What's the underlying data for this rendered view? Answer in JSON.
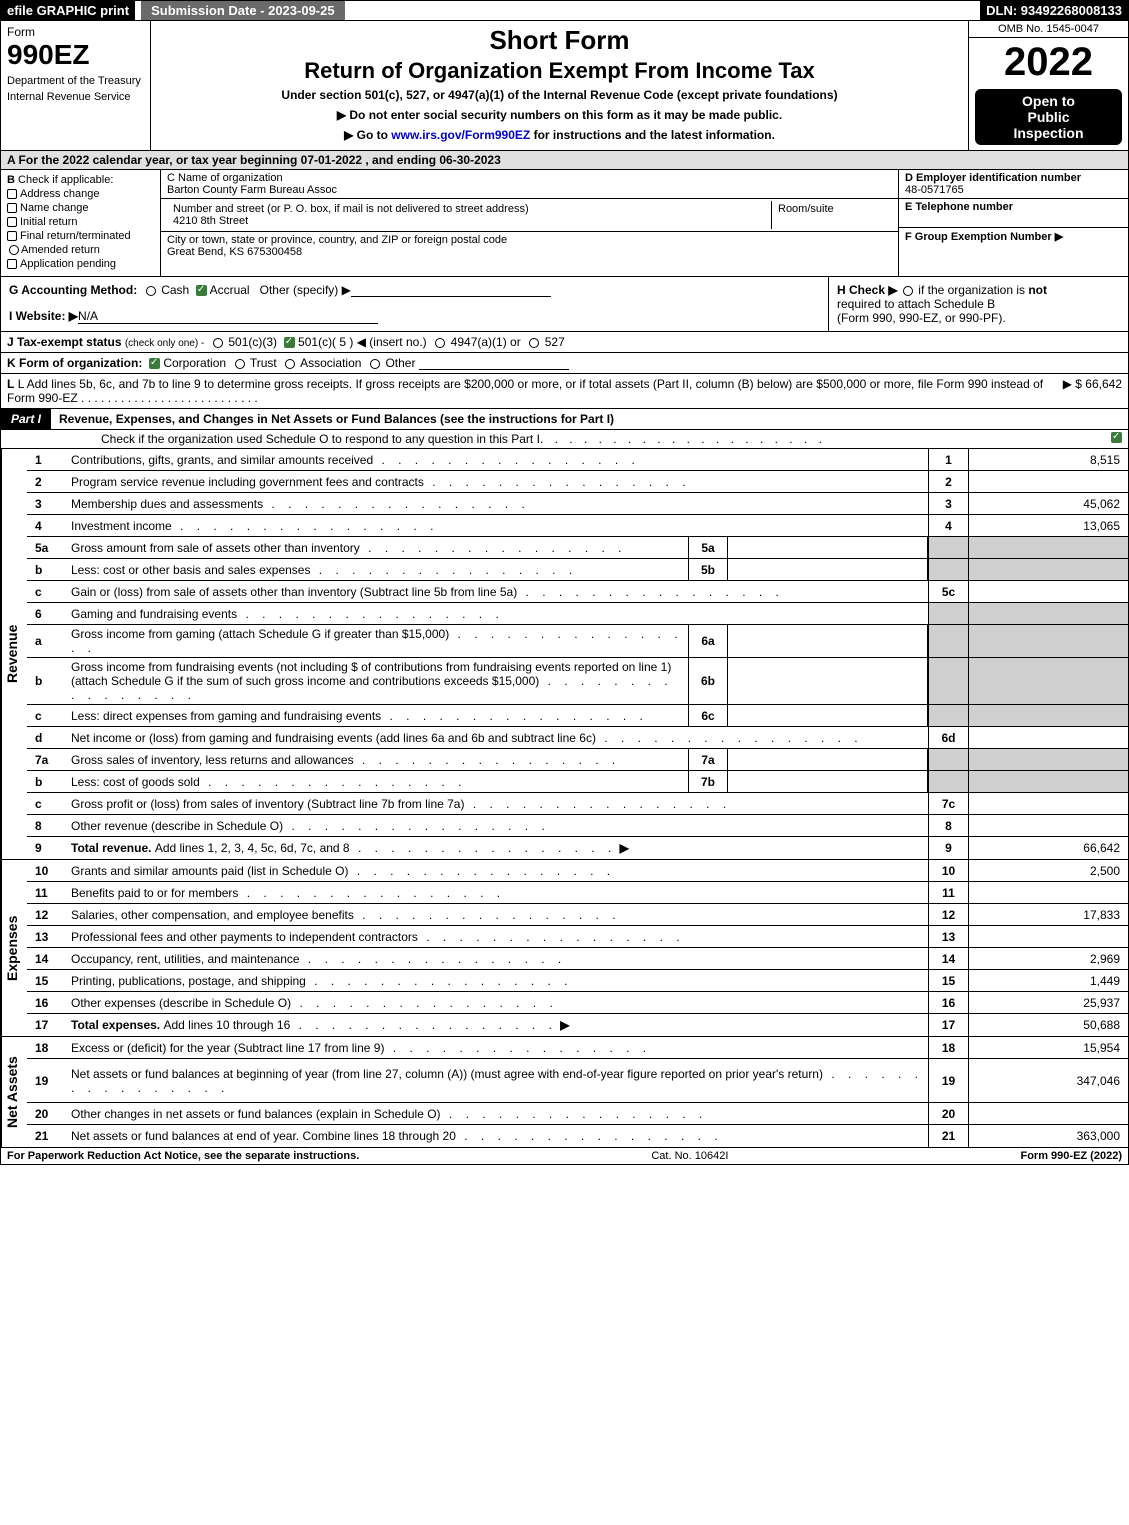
{
  "topbar": {
    "efile": "efile GRAPHIC print",
    "submission": "Submission Date - 2023-09-25",
    "dln": "DLN: 93492268008133"
  },
  "header": {
    "form_label": "Form",
    "form_number": "990EZ",
    "dept1": "Department of the Treasury",
    "dept2": "Internal Revenue Service",
    "short_form": "Short Form",
    "return_title": "Return of Organization Exempt From Income Tax",
    "under_section": "Under section 501(c), 527, or 4947(a)(1) of the Internal Revenue Code (except private foundations)",
    "instr1": "▶ Do not enter social security numbers on this form as it may be made public.",
    "instr2_pre": "▶ Go to ",
    "instr2_link": "www.irs.gov/Form990EZ",
    "instr2_post": " for instructions and the latest information.",
    "omb": "OMB No. 1545-0047",
    "year": "2022",
    "open1": "Open to",
    "open2": "Public",
    "open3": "Inspection"
  },
  "section_a": "A  For the 2022 calendar year, or tax year beginning 07-01-2022 , and ending 06-30-2023",
  "col_b": {
    "label_b": "B",
    "check_label": "Check if applicable:",
    "items": [
      "Address change",
      "Name change",
      "Initial return",
      "Final return/terminated",
      "Amended return",
      "Application pending"
    ]
  },
  "col_c": {
    "c_label": "C Name of organization",
    "org_name": "Barton County Farm Bureau Assoc",
    "street_label": "Number and street (or P. O. box, if mail is not delivered to street address)",
    "street": "4210 8th Street",
    "room_label": "Room/suite",
    "city_label": "City or town, state or province, country, and ZIP or foreign postal code",
    "city": "Great Bend, KS  675300458"
  },
  "col_d": {
    "d_label": "D Employer identification number",
    "ein": "48-0571765",
    "e_label": "E Telephone number",
    "f_label": "F Group Exemption Number    ▶"
  },
  "line_g": {
    "label": "G Accounting Method:",
    "cash": "Cash",
    "accrual": "Accrual",
    "other": "Other (specify) ▶"
  },
  "line_h": {
    "label": "H  Check ▶",
    "text1": "if the organization is ",
    "not": "not",
    "text2": "required to attach Schedule B",
    "text3": "(Form 990, 990-EZ, or 990-PF)."
  },
  "line_i": {
    "label": "I Website: ▶",
    "value": "N/A"
  },
  "line_j": {
    "label": "J Tax-exempt status",
    "sub": "(check only one) -",
    "opt1": "501(c)(3)",
    "opt2": "501(c)( 5 ) ◀ (insert no.)",
    "opt3": "4947(a)(1) or",
    "opt4": "527"
  },
  "line_k": {
    "label": "K Form of organization:",
    "corp": "Corporation",
    "trust": "Trust",
    "assoc": "Association",
    "other": "Other"
  },
  "line_l": {
    "text": "L Add lines 5b, 6c, and 7b to line 9 to determine gross receipts. If gross receipts are $200,000 or more, or if total assets (Part II, column (B) below) are $500,000 or more, file Form 990 instead of Form 990-EZ",
    "amount": "▶ $ 66,642"
  },
  "part1": {
    "label": "Part I",
    "title": "Revenue, Expenses, and Changes in Net Assets or Fund Balances (see the instructions for Part I)",
    "sub": "Check if the organization used Schedule O to respond to any question in this Part I"
  },
  "revenue_label": "Revenue",
  "expenses_label": "Expenses",
  "netassets_label": "Net Assets",
  "rows_revenue": [
    {
      "n": "1",
      "desc": "Contributions, gifts, grants, and similar amounts received",
      "ln": "1",
      "amt": "8,515"
    },
    {
      "n": "2",
      "desc": "Program service revenue including government fees and contracts",
      "ln": "2",
      "amt": ""
    },
    {
      "n": "3",
      "desc": "Membership dues and assessments",
      "ln": "3",
      "amt": "45,062"
    },
    {
      "n": "4",
      "desc": "Investment income",
      "ln": "4",
      "amt": "13,065"
    },
    {
      "n": "5a",
      "desc": "Gross amount from sale of assets other than inventory",
      "mini": "5a",
      "grey": true
    },
    {
      "n": "b",
      "desc": "Less: cost or other basis and sales expenses",
      "mini": "5b",
      "grey": true
    },
    {
      "n": "c",
      "desc": "Gain or (loss) from sale of assets other than inventory (Subtract line 5b from line 5a)",
      "ln": "5c",
      "amt": ""
    },
    {
      "n": "6",
      "desc": "Gaming and fundraising events",
      "grey_full": true
    },
    {
      "n": "a",
      "desc": "Gross income from gaming (attach Schedule G if greater than $15,000)",
      "mini": "6a",
      "grey": true
    },
    {
      "n": "b",
      "desc": "Gross income from fundraising events (not including $                    of contributions from fundraising events reported on line 1) (attach Schedule G if the sum of such gross income and contributions exceeds $15,000)",
      "mini": "6b",
      "grey": true,
      "tall": true
    },
    {
      "n": "c",
      "desc": "Less: direct expenses from gaming and fundraising events",
      "mini": "6c",
      "grey": true
    },
    {
      "n": "d",
      "desc": "Net income or (loss) from gaming and fundraising events (add lines 6a and 6b and subtract line 6c)",
      "ln": "6d",
      "amt": ""
    },
    {
      "n": "7a",
      "desc": "Gross sales of inventory, less returns and allowances",
      "mini": "7a",
      "grey": true
    },
    {
      "n": "b",
      "desc": "Less: cost of goods sold",
      "mini": "7b",
      "grey": true
    },
    {
      "n": "c",
      "desc": "Gross profit or (loss) from sales of inventory (Subtract line 7b from line 7a)",
      "ln": "7c",
      "amt": ""
    },
    {
      "n": "8",
      "desc": "Other revenue (describe in Schedule O)",
      "ln": "8",
      "amt": ""
    },
    {
      "n": "9",
      "desc_bold": "Total revenue. ",
      "desc": "Add lines 1, 2, 3, 4, 5c, 6d, 7c, and 8",
      "ln": "9",
      "amt": "66,642",
      "arrow": true
    }
  ],
  "rows_expenses": [
    {
      "n": "10",
      "desc": "Grants and similar amounts paid (list in Schedule O)",
      "ln": "10",
      "amt": "2,500"
    },
    {
      "n": "11",
      "desc": "Benefits paid to or for members",
      "ln": "11",
      "amt": ""
    },
    {
      "n": "12",
      "desc": "Salaries, other compensation, and employee benefits",
      "ln": "12",
      "amt": "17,833"
    },
    {
      "n": "13",
      "desc": "Professional fees and other payments to independent contractors",
      "ln": "13",
      "amt": ""
    },
    {
      "n": "14",
      "desc": "Occupancy, rent, utilities, and maintenance",
      "ln": "14",
      "amt": "2,969"
    },
    {
      "n": "15",
      "desc": "Printing, publications, postage, and shipping",
      "ln": "15",
      "amt": "1,449"
    },
    {
      "n": "16",
      "desc": "Other expenses (describe in Schedule O)",
      "ln": "16",
      "amt": "25,937"
    },
    {
      "n": "17",
      "desc_bold": "Total expenses. ",
      "desc": "Add lines 10 through 16",
      "ln": "17",
      "amt": "50,688",
      "arrow": true
    }
  ],
  "rows_netassets": [
    {
      "n": "18",
      "desc": "Excess or (deficit) for the year (Subtract line 17 from line 9)",
      "ln": "18",
      "amt": "15,954"
    },
    {
      "n": "19",
      "desc": "Net assets or fund balances at beginning of year (from line 27, column (A)) (must agree with end-of-year figure reported on prior year's return)",
      "ln": "19",
      "amt": "347,046",
      "tall": true
    },
    {
      "n": "20",
      "desc": "Other changes in net assets or fund balances (explain in Schedule O)",
      "ln": "20",
      "amt": ""
    },
    {
      "n": "21",
      "desc": "Net assets or fund balances at end of year. Combine lines 18 through 20",
      "ln": "21",
      "amt": "363,000"
    }
  ],
  "footer": {
    "left": "For Paperwork Reduction Act Notice, see the separate instructions.",
    "center": "Cat. No. 10642I",
    "right_pre": "Form ",
    "right_bold": "990-EZ",
    "right_post": " (2022)"
  }
}
